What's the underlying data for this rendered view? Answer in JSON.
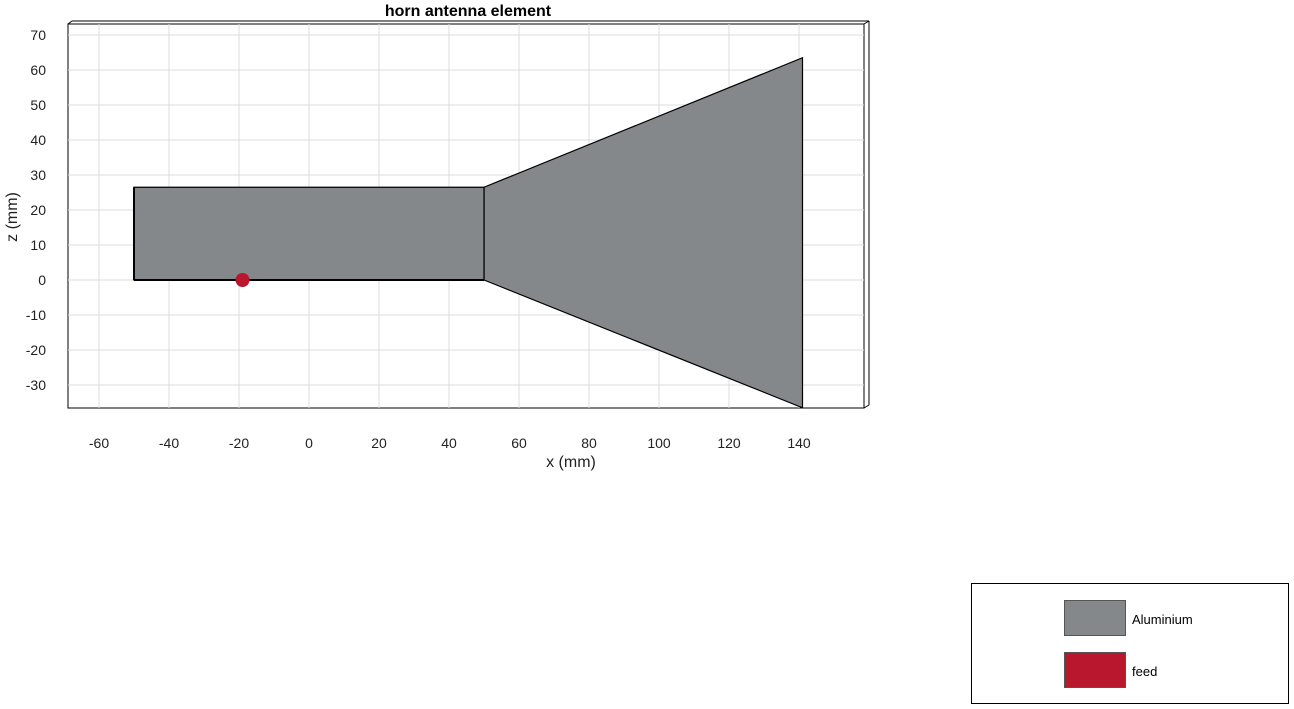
{
  "title": "horn antenna element",
  "axes": {
    "xlabel": "x (mm)",
    "ylabel": "z (mm)",
    "xticks": [
      "-60",
      "-40",
      "-20",
      "0",
      "20",
      "40",
      "60",
      "80",
      "100",
      "120",
      "140"
    ],
    "yticks": [
      "70",
      "60",
      "50",
      "40",
      "30",
      "20",
      "10",
      "0",
      "-10",
      "-20",
      "-30"
    ],
    "grid": true
  },
  "geometry_mm": {
    "waveguide": {
      "x": [
        -50,
        50
      ],
      "z": [
        0,
        26.5
      ]
    },
    "flare": {
      "x": [
        50,
        141
      ],
      "z_at_waveguide": [
        0,
        26.5
      ],
      "z_at_aperture": [
        -36.5,
        63.5
      ]
    },
    "feed": {
      "x": -19,
      "z": 0
    }
  },
  "legend": {
    "items": [
      {
        "label": "Aluminium",
        "color": "#84888b"
      },
      {
        "label": "feed",
        "color": "#b8172e"
      }
    ]
  },
  "colors": {
    "metal": "#84888b",
    "feed": "#b8172e",
    "grid": "#dcdcdc"
  }
}
